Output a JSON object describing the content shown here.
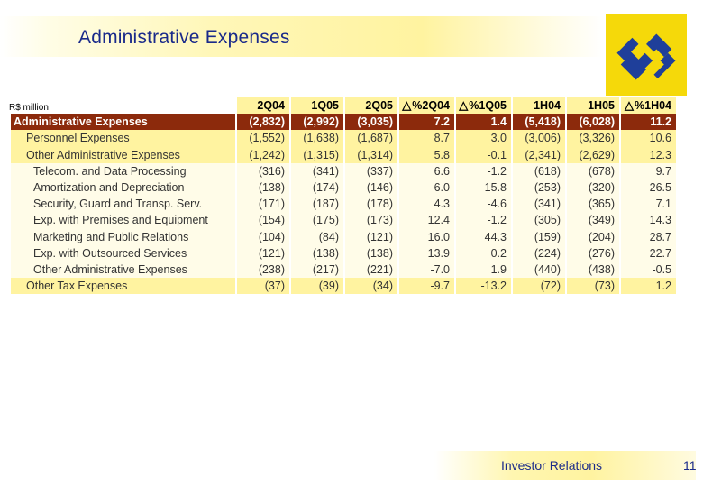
{
  "title": "Administrative Expenses",
  "units": "R$ million",
  "columns": [
    "2Q04",
    "1Q05",
    "2Q05",
    "%2Q04",
    "%1Q05",
    "1H04",
    "1H05",
    "%1H04"
  ],
  "rows": [
    {
      "type": "main",
      "label": "Administrative Expenses",
      "values": [
        "(2,832)",
        "(2,992)",
        "(3,035)",
        "7.2",
        "1.4",
        "(5,418)",
        "(6,028)",
        "11.2"
      ]
    },
    {
      "type": "sub",
      "label": "Personnel Expenses",
      "values": [
        "(1,552)",
        "(1,638)",
        "(1,687)",
        "8.7",
        "3.0",
        "(3,006)",
        "(3,326)",
        "10.6"
      ]
    },
    {
      "type": "sub",
      "label": "Other Administrative Expenses",
      "values": [
        "(1,242)",
        "(1,315)",
        "(1,314)",
        "5.8",
        "-0.1",
        "(2,341)",
        "(2,629)",
        "12.3"
      ]
    },
    {
      "type": "item",
      "label": "Telecom. and Data Processing",
      "values": [
        "(316)",
        "(341)",
        "(337)",
        "6.6",
        "-1.2",
        "(618)",
        "(678)",
        "9.7"
      ]
    },
    {
      "type": "item",
      "label": "Amortization and Depreciation",
      "values": [
        "(138)",
        "(174)",
        "(146)",
        "6.0",
        "-15.8",
        "(253)",
        "(320)",
        "26.5"
      ]
    },
    {
      "type": "item",
      "label": "Security, Guard and Transp. Serv.",
      "values": [
        "(171)",
        "(187)",
        "(178)",
        "4.3",
        "-4.6",
        "(341)",
        "(365)",
        "7.1"
      ]
    },
    {
      "type": "item",
      "label": "Exp. with Premises and Equipment",
      "values": [
        "(154)",
        "(175)",
        "(173)",
        "12.4",
        "-1.2",
        "(305)",
        "(349)",
        "14.3"
      ]
    },
    {
      "type": "item",
      "label": "Marketing and Public Relations",
      "values": [
        "(104)",
        "(84)",
        "(121)",
        "16.0",
        "44.3",
        "(159)",
        "(204)",
        "28.7"
      ]
    },
    {
      "type": "item",
      "label": "Exp. with Outsourced Services",
      "values": [
        "(121)",
        "(138)",
        "(138)",
        "13.9",
        "0.2",
        "(224)",
        "(276)",
        "22.7"
      ]
    },
    {
      "type": "item",
      "label": "Other Administrative Expenses",
      "values": [
        "(238)",
        "(217)",
        "(221)",
        "-7.0",
        "1.9",
        "(440)",
        "(438)",
        "-0.5"
      ]
    },
    {
      "type": "sub",
      "label": "Other Tax Expenses",
      "values": [
        "(37)",
        "(39)",
        "(34)",
        "-9.7",
        "-13.2",
        "(72)",
        "(73)",
        "1.2"
      ]
    }
  ],
  "footer": "Investor Relations",
  "page_number": "11",
  "colors": {
    "header_band": "#fff3a0",
    "main_row": "#8c2a0c",
    "title_text": "#1a2a8a",
    "logo_yellow": "#f5d90a",
    "logo_blue": "#1f3f9a"
  }
}
